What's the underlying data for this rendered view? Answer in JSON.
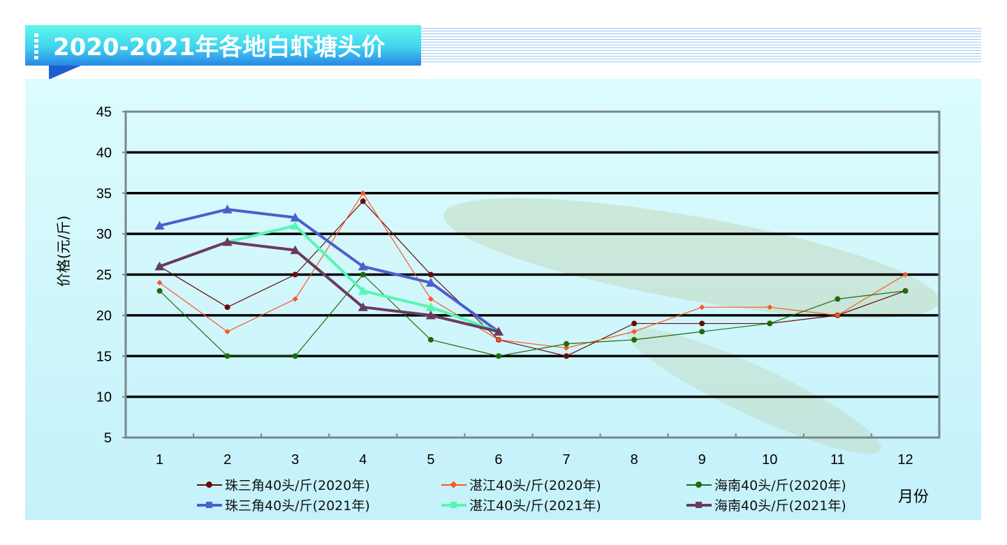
{
  "title": "2020-2021年各地白虾塘头价",
  "chart_data": {
    "type": "line",
    "title": "2020-2021年各地白虾塘头价",
    "xlabel": "月份",
    "ylabel": "价格(元/斤)",
    "categories": [
      "1",
      "2",
      "3",
      "4",
      "5",
      "6",
      "7",
      "8",
      "9",
      "10",
      "11",
      "12"
    ],
    "ylim": [
      5,
      45
    ],
    "yticks": [
      "5",
      "10",
      "15",
      "20",
      "25",
      "30",
      "35",
      "40",
      "45"
    ],
    "grid": true,
    "legend_position": "bottom",
    "series": [
      {
        "name": "珠三角40头/斤(2020年)",
        "color": "#6b0a0a",
        "marker": "circle",
        "width": 1.2,
        "values": [
          26,
          21,
          25,
          34,
          25,
          17,
          15,
          19,
          19,
          19,
          20,
          23
        ]
      },
      {
        "name": "湛江40头/斤(2020年)",
        "color": "#ff5522",
        "marker": "diamond",
        "width": 1.2,
        "values": [
          24,
          18,
          22,
          35,
          22,
          17,
          16,
          18,
          21,
          21,
          20,
          25
        ]
      },
      {
        "name": "海南40头/斤(2020年)",
        "color": "#1f6b0a",
        "marker": "circle",
        "width": 1.2,
        "values": [
          23,
          15,
          15,
          25,
          17,
          15,
          16.5,
          17,
          18,
          19,
          22,
          23
        ]
      },
      {
        "name": "珠三角40头/斤(2021年)",
        "color": "#4c5fcc",
        "marker": "triangle",
        "width": 4,
        "values": [
          31,
          33,
          32,
          26,
          24,
          18,
          null,
          null,
          null,
          null,
          null,
          null
        ]
      },
      {
        "name": "湛江40头/斤(2021年)",
        "color": "#55f7b4",
        "marker": "triangle",
        "width": 4,
        "values": [
          26,
          29,
          31,
          23,
          21,
          18,
          null,
          null,
          null,
          null,
          null,
          null
        ]
      },
      {
        "name": "海南40头/斤(2021年)",
        "color": "#6b3a5e",
        "marker": "triangle",
        "width": 4,
        "values": [
          26,
          29,
          28,
          21,
          20,
          18,
          null,
          null,
          null,
          null,
          null,
          null
        ]
      }
    ]
  }
}
